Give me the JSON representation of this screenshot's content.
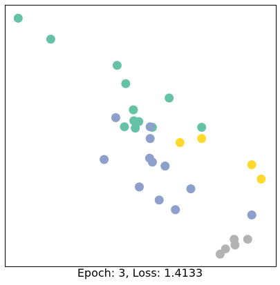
{
  "chart_data": {
    "type": "scatter",
    "title": "",
    "xlabel": "Epoch: 3, Loss: 1.4133",
    "ylabel": "",
    "axes": "hidden",
    "grid": false,
    "legend": "none",
    "xlim": [
      0,
      100
    ],
    "ylim": [
      0,
      100
    ],
    "series": [
      {
        "color": "#66c2a5",
        "x": [
          4.8,
          16.8,
          41.3,
          44.5,
          47.3,
          47.5,
          49.3,
          44.0,
          48.0,
          54.3,
          60.5,
          72.5
        ],
        "y": [
          95.0,
          87.0,
          77.0,
          70.0,
          60.0,
          55.8,
          55.5,
          53.5,
          53.0,
          53.3,
          64.5,
          53.3
        ]
      },
      {
        "color": "#8da0cb",
        "x": [
          40.8,
          53.5,
          53.5,
          53.3,
          54.3,
          59.0,
          36.5,
          49.5,
          68.5,
          56.8,
          62.8,
          91.0
        ],
        "y": [
          57.0,
          53.5,
          49.0,
          41.5,
          40.0,
          38.5,
          41.0,
          30.5,
          29.8,
          25.5,
          21.8,
          19.8
        ]
      },
      {
        "color": "#ffd92f",
        "x": [
          64.5,
          72.5,
          91.0,
          94.5
        ],
        "y": [
          47.5,
          49.0,
          39.0,
          33.5
        ]
      },
      {
        "color": "#b3b3b3",
        "x": [
          84.5,
          89.5,
          84.8,
          81.3,
          79.3
        ],
        "y": [
          10.5,
          10.5,
          8.3,
          6.8,
          4.8
        ]
      }
    ]
  }
}
